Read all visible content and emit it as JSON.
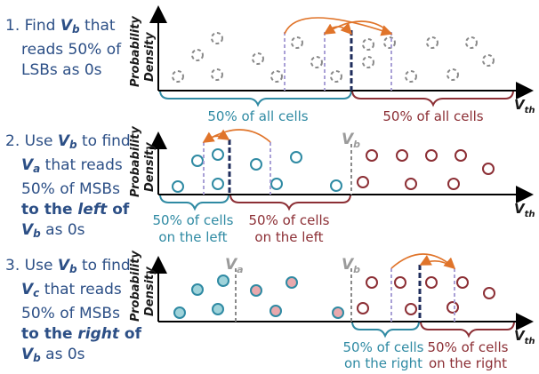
{
  "steps": [
    {
      "number": "1.",
      "line1_pre": "Find ",
      "var": "V",
      "var_sub": "b",
      "line1_post": " that",
      "line2": "reads 50% of",
      "line3": "LSBs as 0s"
    },
    {
      "number": "2.",
      "line1_pre": "Use ",
      "var_a": "V",
      "var_a_sub": "b",
      "line1_post": " to find",
      "var_b": "V",
      "var_b_sub": "a",
      "line2_post": " that reads",
      "line3": "50% of MSBs",
      "line4_pre": "to the ",
      "line4_em": "left",
      "line4_post": " of",
      "var_c": "V",
      "var_c_sub": "b",
      "line5_post": " as 0s"
    },
    {
      "number": "3.",
      "line1_pre": "Use ",
      "var_a": "V",
      "var_a_sub": "b",
      "line1_post": " to find",
      "var_b": "V",
      "var_b_sub": "c",
      "line2_post": " that reads",
      "line3": "50% of MSBs",
      "line4_pre": "to the ",
      "line4_em": "right",
      "line4_post": " of",
      "var_c": "V",
      "var_c_sub": "b",
      "line5_post": " as 0s"
    }
  ],
  "axis": {
    "y_line1": "Probability",
    "y_line2": "Density",
    "x_main": "V",
    "x_sub": "th"
  },
  "panel1": {
    "left_caption": "50% of all cells",
    "right_caption": "50% of all cells"
  },
  "panel2": {
    "left_caption_1": "50% of cells",
    "left_caption_2": "on the left",
    "right_caption_1": "50% of cells",
    "right_caption_2": "on the left",
    "vb_main": "V",
    "vb_sub": "b"
  },
  "panel3": {
    "left_caption_1": "50% of cells",
    "left_caption_2": "on the right",
    "right_caption_1": "50% of cells",
    "right_caption_2": "on the right",
    "va_main": "V",
    "va_sub": "a",
    "vb_main": "V",
    "vb_sub": "b"
  },
  "colors": {
    "text_blue": "#2c4f86",
    "teal": "#2f8aa3",
    "dark_red": "#8c2f35",
    "arrow_orange": "#e0742a",
    "dashed_gray": "#8a8a8a",
    "dashed_navy": "#1f2d5c",
    "dashed_lavender": "#a9a0d6",
    "teal_fill": "#9fd3da",
    "pink_fill": "#e9a9ad"
  }
}
